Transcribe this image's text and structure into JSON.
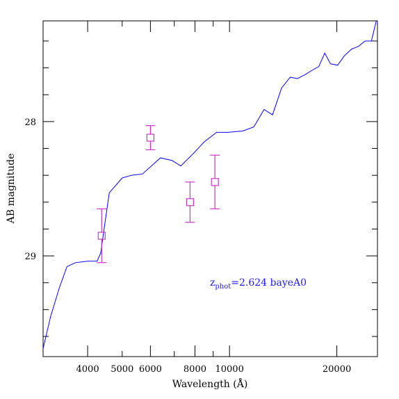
{
  "chart_data": {
    "type": "line",
    "xlabel": "Wavelength (Å)",
    "ylabel": "AB magnitude",
    "x_scale": "log",
    "xlim": [
      3000,
      26000
    ],
    "ylim": [
      29.75,
      27.25
    ],
    "x_ticks_major": [
      4000,
      6000,
      8000,
      10000,
      20000
    ],
    "x_tick_labels": [
      {
        "value": 4000,
        "label": "4000"
      },
      {
        "value": 5000,
        "label": "5000"
      },
      {
        "value": 6000,
        "label": "6000"
      },
      {
        "value": 8000,
        "label": "8000"
      },
      {
        "value": 10000,
        "label": "10000"
      },
      {
        "value": 20000,
        "label": "20000"
      }
    ],
    "x_ticks_minor": [
      3000,
      5000,
      7000,
      9000,
      30000
    ],
    "y_tick_labels": [
      {
        "value": 28,
        "label": "28"
      },
      {
        "value": 29,
        "label": "29"
      }
    ],
    "y_ticks_minor": [
      27.4,
      27.6,
      27.8,
      28.2,
      28.4,
      28.6,
      28.8,
      29.2,
      29.4,
      29.6
    ],
    "annotation": {
      "prefix": "z",
      "sub": "phot",
      "suffix": "=2.624 bayeA0"
    },
    "series": [
      {
        "color": "#0000ff",
        "x": [
          3000,
          3150,
          3330,
          3500,
          3700,
          4000,
          4250,
          4350,
          4600,
          5000,
          5300,
          5700,
          6400,
          6900,
          7300,
          7900,
          8500,
          9200,
          9900,
          10900,
          11700,
          12500,
          13200,
          14000,
          14800,
          15500,
          16300,
          17000,
          17800,
          18500,
          19200,
          20100,
          21000,
          22000,
          23000,
          24000,
          25000,
          25800
        ],
        "y": [
          29.69,
          29.45,
          29.24,
          29.08,
          29.05,
          29.04,
          29.04,
          28.98,
          28.53,
          28.42,
          28.4,
          28.39,
          28.27,
          28.29,
          28.33,
          28.24,
          28.15,
          28.08,
          28.08,
          28.07,
          28.04,
          27.91,
          27.95,
          27.75,
          27.67,
          27.68,
          27.65,
          27.62,
          27.59,
          27.49,
          27.57,
          27.58,
          27.51,
          27.46,
          27.44,
          27.4,
          27.4,
          27.25
        ]
      }
    ],
    "points": {
      "color": "#cc33cc",
      "x": [
        4380,
        6000,
        7750,
        9100
      ],
      "y": [
        28.85,
        28.12,
        28.6,
        28.45
      ],
      "yerr": [
        0.2,
        0.09,
        0.15,
        0.2
      ]
    }
  }
}
